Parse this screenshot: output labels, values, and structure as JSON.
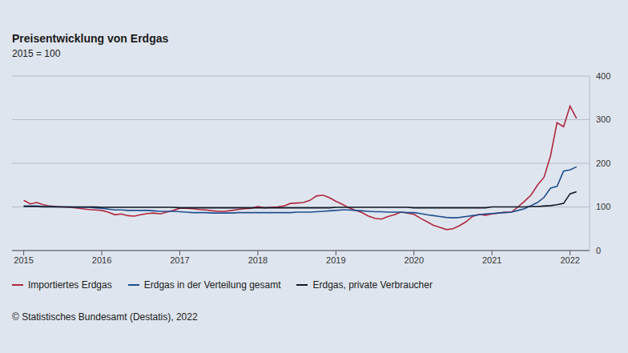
{
  "chart_data": {
    "type": "line",
    "title": "Preisentwicklung von Erdgas",
    "subtitle": "2015 = 100",
    "source": "© Statistisches Bundesamt (Destatis), 2022",
    "x": [
      2015,
      2015.083,
      2015.167,
      2015.25,
      2015.333,
      2015.417,
      2015.5,
      2015.583,
      2015.667,
      2015.75,
      2015.833,
      2015.917,
      2016,
      2016.083,
      2016.167,
      2016.25,
      2016.333,
      2016.417,
      2016.5,
      2016.583,
      2016.667,
      2016.75,
      2016.833,
      2016.917,
      2017,
      2017.083,
      2017.167,
      2017.25,
      2017.333,
      2017.417,
      2017.5,
      2017.583,
      2017.667,
      2017.75,
      2017.833,
      2017.917,
      2018,
      2018.083,
      2018.167,
      2018.25,
      2018.333,
      2018.417,
      2018.5,
      2018.583,
      2018.667,
      2018.75,
      2018.833,
      2018.917,
      2019,
      2019.083,
      2019.167,
      2019.25,
      2019.333,
      2019.417,
      2019.5,
      2019.583,
      2019.667,
      2019.75,
      2019.833,
      2019.917,
      2020,
      2020.083,
      2020.167,
      2020.25,
      2020.333,
      2020.417,
      2020.5,
      2020.583,
      2020.667,
      2020.75,
      2020.833,
      2020.917,
      2021,
      2021.083,
      2021.167,
      2021.25,
      2021.333,
      2021.417,
      2021.5,
      2021.583,
      2021.667,
      2021.75,
      2021.833,
      2021.917,
      2022,
      2022.083
    ],
    "series": [
      {
        "name": "Importiertes Erdgas",
        "color": "#b0283f",
        "values": [
          115,
          107,
          110,
          105,
          102,
          101,
          100,
          99,
          98,
          96,
          94,
          93,
          92,
          88,
          82,
          84,
          80,
          79,
          82,
          85,
          86,
          84,
          88,
          92,
          97,
          97,
          96,
          94,
          93,
          91,
          90,
          90,
          92,
          94,
          96,
          97,
          101,
          98,
          99,
          100,
          102,
          108,
          109,
          110,
          115,
          125,
          127,
          121,
          113,
          106,
          98,
          92,
          87,
          79,
          74,
          72,
          78,
          82,
          88,
          86,
          83,
          74,
          66,
          58,
          53,
          48,
          50,
          57,
          66,
          78,
          83,
          81,
          84,
          86,
          88,
          88,
          100,
          113,
          127,
          150,
          168,
          217,
          293,
          284,
          331,
          303
        ]
      },
      {
        "name": "Erdgas in der Verteilung gesamt",
        "color": "#1f4f8f",
        "values": [
          102,
          102,
          102,
          101,
          101,
          100,
          100,
          100,
          99,
          99,
          99,
          98,
          97,
          95,
          93,
          93,
          92,
          92,
          92,
          92,
          91,
          90,
          90,
          90,
          89,
          88,
          87,
          87,
          87,
          86,
          86,
          86,
          86,
          87,
          87,
          87,
          87,
          87,
          87,
          87,
          87,
          87,
          88,
          88,
          88,
          89,
          90,
          91,
          92,
          93,
          93,
          92,
          91,
          90,
          89,
          89,
          88,
          88,
          88,
          87,
          87,
          85,
          82,
          80,
          78,
          76,
          75,
          76,
          78,
          80,
          82,
          84,
          85,
          86,
          87,
          88,
          92,
          96,
          103,
          110,
          122,
          143,
          147,
          182,
          185,
          192
        ]
      },
      {
        "name": "Erdgas, private Verbraucher",
        "color": "#111827",
        "values": [
          101,
          101,
          101,
          100,
          100,
          100,
          100,
          100,
          100,
          100,
          100,
          100,
          99,
          99,
          99,
          99,
          99,
          99,
          99,
          99,
          99,
          99,
          99,
          99,
          98,
          98,
          98,
          98,
          98,
          98,
          98,
          98,
          98,
          98,
          98,
          98,
          98,
          98,
          98,
          98,
          98,
          98,
          98,
          98,
          98,
          98,
          98,
          98,
          99,
          99,
          99,
          99,
          99,
          99,
          99,
          99,
          99,
          99,
          99,
          99,
          98,
          98,
          98,
          98,
          98,
          98,
          98,
          98,
          98,
          98,
          98,
          98,
          100,
          100,
          100,
          100,
          100,
          100,
          101,
          101,
          102,
          103,
          105,
          108,
          130,
          135
        ]
      }
    ],
    "xlim": [
      2014.85,
      2022.25
    ],
    "xticks": [
      2015,
      2016,
      2017,
      2018,
      2019,
      2020,
      2021,
      2022
    ],
    "ylim": [
      0,
      400
    ],
    "yticks": [
      0,
      100,
      200,
      300,
      400
    ],
    "grid": true,
    "legend": "bottom"
  }
}
